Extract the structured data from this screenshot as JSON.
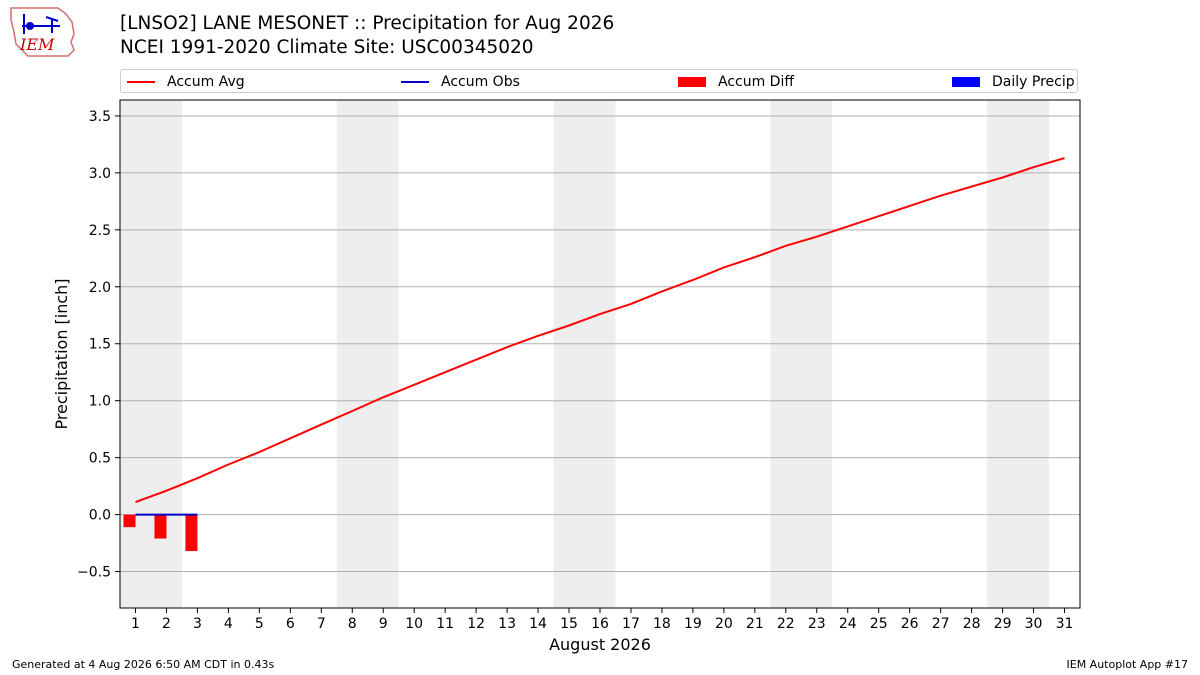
{
  "logo": {
    "text": "IEM"
  },
  "header": {
    "title_line1": "[LNSO2] LANE MESONET :: Precipitation for Aug 2026",
    "title_line2": "NCEI 1991-2020 Climate Site: USC00345020"
  },
  "legend": {
    "items": [
      {
        "label": "Accum Avg",
        "kind": "line",
        "color": "#ff0000"
      },
      {
        "label": "Accum Obs",
        "kind": "line",
        "color": "#0000cc"
      },
      {
        "label": "Accum Diff",
        "kind": "box",
        "color": "#ff0000"
      },
      {
        "label": "Daily Precip",
        "kind": "box",
        "color": "#0000ff"
      }
    ]
  },
  "footer": {
    "left": "Generated at 4 Aug 2026 6:50 AM CDT in 0.43s",
    "right": "IEM Autoplot App #17"
  },
  "chart_data": {
    "type": "line",
    "xlabel": "August 2026",
    "ylabel": "Precipitation [inch]",
    "xlim": [
      0.5,
      31.5
    ],
    "ylim": [
      -0.82,
      3.64
    ],
    "x_ticks": [
      1,
      2,
      3,
      4,
      5,
      6,
      7,
      8,
      9,
      10,
      11,
      12,
      13,
      14,
      15,
      16,
      17,
      18,
      19,
      20,
      21,
      22,
      23,
      24,
      25,
      26,
      27,
      28,
      29,
      30,
      31
    ],
    "y_ticks": [
      -0.5,
      0.0,
      0.5,
      1.0,
      1.5,
      2.0,
      2.5,
      3.0,
      3.5
    ],
    "y_tick_labels": [
      "−0.5",
      "0.0",
      "0.5",
      "1.0",
      "1.5",
      "2.0",
      "2.5",
      "3.0",
      "3.5"
    ],
    "grid": "horizontal",
    "legend_position": "top",
    "weekend_shading": [
      [
        0.5,
        2.5
      ],
      [
        7.5,
        9.5
      ],
      [
        14.5,
        16.5
      ],
      [
        21.5,
        23.5
      ],
      [
        28.5,
        30.5
      ]
    ],
    "series": [
      {
        "name": "Accum Avg",
        "type": "line",
        "color": "#ff0000",
        "x": [
          1,
          2,
          3,
          4,
          5,
          6,
          7,
          8,
          9,
          10,
          11,
          12,
          13,
          14,
          15,
          16,
          17,
          18,
          19,
          20,
          21,
          22,
          23,
          24,
          25,
          26,
          27,
          28,
          29,
          30,
          31
        ],
        "values": [
          0.11,
          0.21,
          0.32,
          0.44,
          0.55,
          0.67,
          0.79,
          0.91,
          1.03,
          1.14,
          1.25,
          1.36,
          1.47,
          1.57,
          1.66,
          1.76,
          1.85,
          1.96,
          2.06,
          2.17,
          2.26,
          2.36,
          2.44,
          2.53,
          2.62,
          2.71,
          2.8,
          2.88,
          2.96,
          3.05,
          3.13
        ]
      },
      {
        "name": "Accum Obs",
        "type": "line",
        "color": "#0000cc",
        "x": [
          1,
          2,
          3
        ],
        "values": [
          0.0,
          0.0,
          0.0
        ]
      },
      {
        "name": "Accum Diff",
        "type": "bar",
        "color": "#ff0000",
        "x": [
          1,
          2,
          3
        ],
        "values": [
          -0.11,
          -0.21,
          -0.32
        ]
      },
      {
        "name": "Daily Precip",
        "type": "bar",
        "color": "#0000ff",
        "x": [
          1,
          2,
          3
        ],
        "values": [
          0.0,
          0.0,
          0.0
        ]
      }
    ]
  }
}
